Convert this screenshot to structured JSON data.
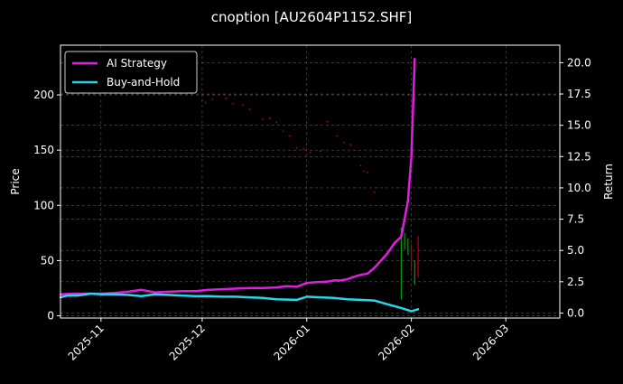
{
  "chart_data": {
    "type": "line",
    "title": "cnoption [AU2604P1152.SHF]",
    "ylabel": "Price",
    "y2label": "Return",
    "ylim": [
      -2,
      245
    ],
    "y2lim": [
      -0.4,
      21.4
    ],
    "xlim": [
      "2025-10-20",
      "2026-03-17"
    ],
    "grid": true,
    "legend_position": "top-left",
    "x_ticks": [
      "2025-11",
      "2025-12",
      "2026-01",
      "2026-02",
      "2026-03"
    ],
    "y_ticks": [
      0,
      50,
      100,
      150,
      200
    ],
    "y2_ticks": [
      "0.0",
      "2.5",
      "5.0",
      "7.5",
      "10.0",
      "12.5",
      "15.0",
      "17.5",
      "20.0"
    ],
    "series": [
      {
        "name": "AI Strategy",
        "axis": "right",
        "color": "#e01ee0",
        "points": [
          [
            "2025-10-20",
            1.5
          ],
          [
            "2025-10-24",
            1.55
          ],
          [
            "2025-10-28",
            1.55
          ],
          [
            "2025-11-01",
            1.55
          ],
          [
            "2025-11-05",
            1.6
          ],
          [
            "2025-11-09",
            1.7
          ],
          [
            "2025-11-13",
            1.85
          ],
          [
            "2025-11-15",
            1.75
          ],
          [
            "2025-11-17",
            1.65
          ],
          [
            "2025-11-21",
            1.7
          ],
          [
            "2025-11-25",
            1.75
          ],
          [
            "2025-11-29",
            1.75
          ],
          [
            "2025-12-03",
            1.85
          ],
          [
            "2025-12-07",
            1.9
          ],
          [
            "2025-12-11",
            1.95
          ],
          [
            "2025-12-15",
            2.0
          ],
          [
            "2025-12-19",
            2.0
          ],
          [
            "2025-12-23",
            2.05
          ],
          [
            "2025-12-26",
            2.15
          ],
          [
            "2025-12-29",
            2.1
          ],
          [
            "2026-01-01",
            2.4
          ],
          [
            "2026-01-03",
            2.45
          ],
          [
            "2026-01-07",
            2.5
          ],
          [
            "2026-01-09",
            2.6
          ],
          [
            "2026-01-11",
            2.6
          ],
          [
            "2026-01-13",
            2.7
          ],
          [
            "2026-01-15",
            2.9
          ],
          [
            "2026-01-17",
            3.05
          ],
          [
            "2026-01-19",
            3.15
          ],
          [
            "2026-01-21",
            3.6
          ],
          [
            "2026-01-23",
            4.2
          ],
          [
            "2026-01-25",
            4.8
          ],
          [
            "2026-01-27",
            5.6
          ],
          [
            "2026-01-29",
            6.1
          ],
          [
            "2026-01-30",
            7.5
          ],
          [
            "2026-01-31",
            9.0
          ],
          [
            "2026-02-01",
            12.5
          ],
          [
            "2026-02-02",
            20.3
          ]
        ]
      },
      {
        "name": "Buy-and-Hold",
        "axis": "right",
        "color": "#27d6ea",
        "points": [
          [
            "2025-10-20",
            1.25
          ],
          [
            "2025-10-22",
            1.4
          ],
          [
            "2025-10-25",
            1.4
          ],
          [
            "2025-10-29",
            1.55
          ],
          [
            "2025-11-01",
            1.5
          ],
          [
            "2025-11-05",
            1.5
          ],
          [
            "2025-11-09",
            1.45
          ],
          [
            "2025-11-13",
            1.35
          ],
          [
            "2025-11-17",
            1.5
          ],
          [
            "2025-11-21",
            1.45
          ],
          [
            "2025-11-25",
            1.4
          ],
          [
            "2025-11-29",
            1.35
          ],
          [
            "2025-12-03",
            1.35
          ],
          [
            "2025-12-07",
            1.3
          ],
          [
            "2025-12-11",
            1.3
          ],
          [
            "2025-12-15",
            1.25
          ],
          [
            "2025-12-19",
            1.2
          ],
          [
            "2025-12-23",
            1.1
          ],
          [
            "2025-12-29",
            1.05
          ],
          [
            "2026-01-01",
            1.3
          ],
          [
            "2026-01-05",
            1.25
          ],
          [
            "2026-01-09",
            1.2
          ],
          [
            "2026-01-13",
            1.1
          ],
          [
            "2026-01-17",
            1.05
          ],
          [
            "2026-01-21",
            1.0
          ],
          [
            "2026-01-25",
            0.7
          ],
          [
            "2026-01-29",
            0.4
          ],
          [
            "2026-02-01",
            0.15
          ],
          [
            "2026-02-03",
            0.3
          ]
        ]
      }
    ],
    "price_marks": {
      "axis": "left",
      "color": "#c00000",
      "points": [
        [
          "2025-12-01",
          195
        ],
        [
          "2025-12-02",
          193
        ],
        [
          "2025-12-04",
          196
        ],
        [
          "2025-12-08",
          197
        ],
        [
          "2025-12-10",
          192
        ],
        [
          "2025-12-13",
          191
        ],
        [
          "2025-12-15",
          187
        ],
        [
          "2025-12-19",
          178
        ],
        [
          "2025-12-21",
          179
        ],
        [
          "2025-12-23",
          175
        ],
        [
          "2025-12-25",
          167
        ],
        [
          "2025-12-27",
          163
        ],
        [
          "2025-12-29",
          152
        ],
        [
          "2025-12-31",
          151
        ],
        [
          "2026-01-02",
          148
        ],
        [
          "2026-01-05",
          149
        ],
        [
          "2026-01-07",
          176
        ],
        [
          "2026-01-10",
          163
        ],
        [
          "2026-01-12",
          157
        ],
        [
          "2026-01-14",
          155
        ],
        [
          "2026-01-17",
          136
        ],
        [
          "2026-01-18",
          131
        ],
        [
          "2026-01-19",
          130
        ],
        [
          "2026-01-21",
          112
        ],
        [
          "2026-01-25",
          88
        ]
      ]
    },
    "price_bars": {
      "axis": "left",
      "points": [
        [
          "2026-01-29",
          15,
          80,
          "#00a000"
        ],
        [
          "2026-01-30",
          60,
          75,
          "#00a000"
        ],
        [
          "2026-01-31",
          55,
          70,
          "#00a000"
        ],
        [
          "2026-02-01",
          40,
          65,
          "#c00000"
        ],
        [
          "2026-02-02",
          28,
          50,
          "#00a000"
        ],
        [
          "2026-02-03",
          35,
          72,
          "#c00000"
        ]
      ]
    }
  }
}
